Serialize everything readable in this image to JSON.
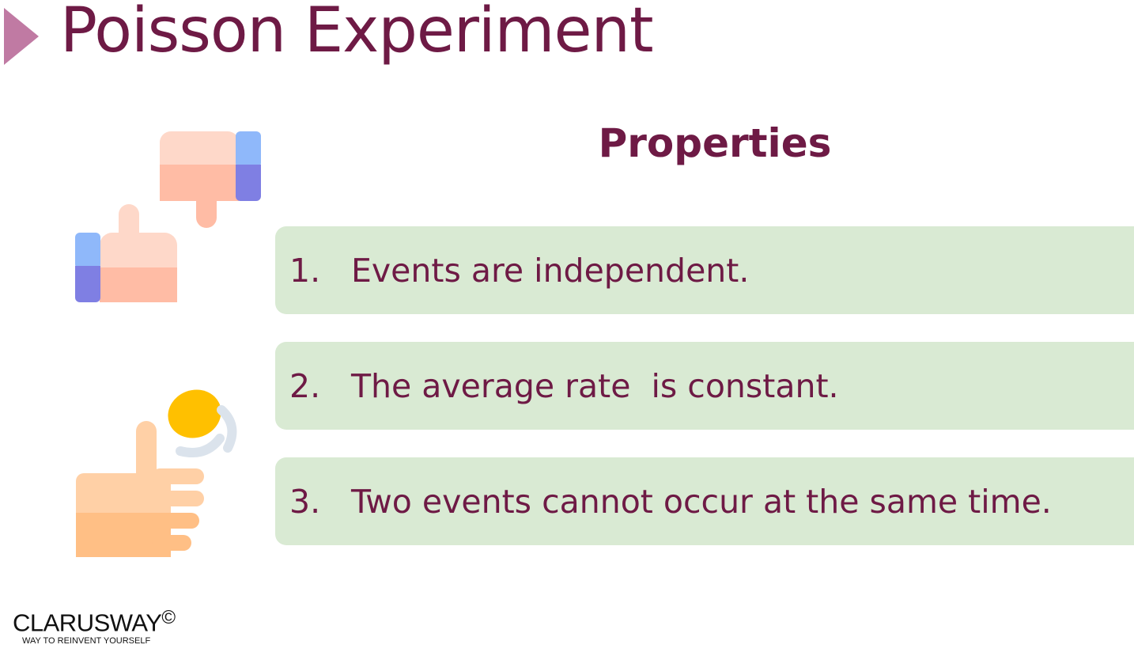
{
  "slide": {
    "title": "Poisson Experiment",
    "subheading": "Properties",
    "properties": [
      {
        "number": "1.",
        "text": "Events are independent."
      },
      {
        "number": "2.",
        "text": "The average rate  is constant."
      },
      {
        "number": "3.",
        "text": "Two events cannot occur at the same time."
      }
    ]
  },
  "icons": {
    "title_marker": "triangle-right-icon",
    "thumbs": "thumbs-up-down-icon",
    "coin_flip": "coin-flip-icon"
  },
  "logo": {
    "name": "CLARUSWAY",
    "copyright": "©",
    "tagline": "WAY TO REINVENT YOURSELF"
  },
  "colors": {
    "title": "#6e1a45",
    "accent_arrow": "#c07aa3",
    "box_background": "#d9ead3"
  }
}
